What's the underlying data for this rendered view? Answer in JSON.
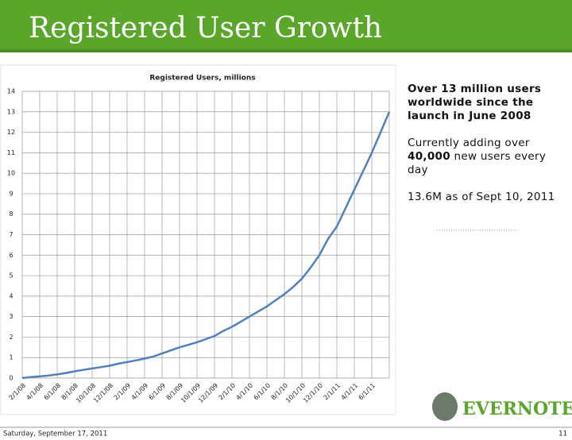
{
  "slide": {
    "title": "Registered User Growth",
    "text1": "Over 13 million users worldwide since the launch in June 2008",
    "text2": [
      "Currently adding over ",
      "40,000",
      " new users every day"
    ],
    "text3": "13.6M as of Sept 10, 2011",
    "logo": "EVERNOTE",
    "footer_date": "Saturday, September 17, 2011",
    "page": "11"
  },
  "chart_data": {
    "type": "line",
    "title": "Registered Users, millions",
    "categories": [
      "2/1/08",
      null,
      "4/1/08",
      null,
      "6/1/08",
      null,
      "8/1/08",
      null,
      "10/1/08",
      null,
      "12/1/08",
      null,
      "2/1/09",
      null,
      "4/1/09",
      null,
      "6/1/09",
      null,
      "8/1/09",
      null,
      "10/1/09",
      null,
      "12/1/09",
      null,
      "2/1/10",
      null,
      "4/1/10",
      null,
      "6/1/10",
      null,
      "8/1/10",
      null,
      "10/1/10",
      null,
      "12/1/10",
      null,
      "2/1/11",
      null,
      "4/1/11",
      null,
      "6/1/11",
      null,
      null
    ],
    "values": [
      0.0,
      0.05,
      0.08,
      0.12,
      0.18,
      0.25,
      0.33,
      0.4,
      0.47,
      0.53,
      0.6,
      0.7,
      0.78,
      0.86,
      0.95,
      1.05,
      1.2,
      1.35,
      1.5,
      1.62,
      1.75,
      1.9,
      2.05,
      2.3,
      2.5,
      2.75,
      3.0,
      3.25,
      3.5,
      3.8,
      4.1,
      4.45,
      4.85,
      5.4,
      6.0,
      6.8,
      7.4,
      8.3,
      9.2,
      10.1,
      11.0,
      12.0,
      13.0
    ],
    "color": "#4f81bd",
    "ylim": [
      0,
      14
    ],
    "yticks": [
      0,
      1,
      2,
      3,
      4,
      5,
      6,
      7,
      8,
      9,
      10,
      11,
      12,
      13,
      14
    ],
    "grid": true
  }
}
